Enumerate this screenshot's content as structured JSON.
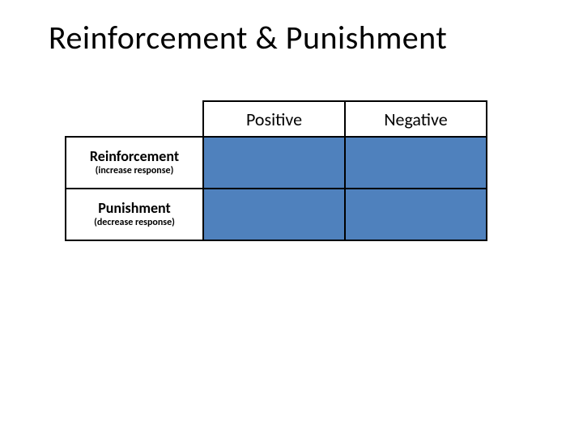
{
  "title": "Reinforcement & Punishment",
  "table": {
    "type": "table",
    "background_color": "#ffffff",
    "border_color": "#000000",
    "border_width": 2,
    "fill_color": "#4f81bd",
    "col_header_fontsize": 22,
    "row_title_fontsize": 18,
    "row_sub_fontsize": 12,
    "columns": [
      {
        "label": "Positive"
      },
      {
        "label": "Negative"
      }
    ],
    "rows": [
      {
        "title": "Reinforcement",
        "sub": "(increase response)"
      },
      {
        "title": "Punishment",
        "sub": "(decrease response)"
      }
    ],
    "cells": [
      [
        "",
        ""
      ],
      [
        "",
        ""
      ]
    ]
  },
  "title_fontsize": 40,
  "title_color": "#000000"
}
